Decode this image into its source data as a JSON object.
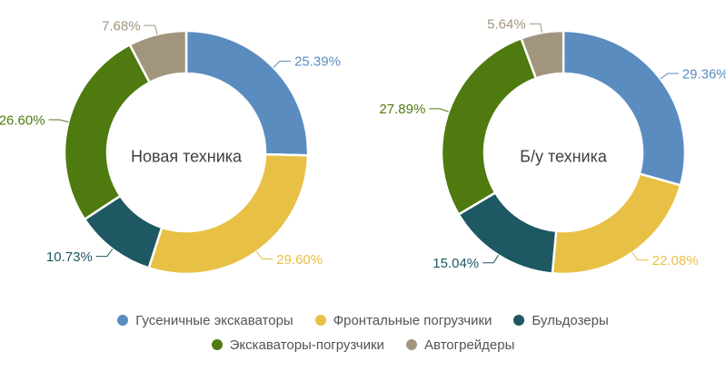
{
  "figure": {
    "type": "dual-donut-comparison",
    "background": "#ffffff",
    "title_color": "#3f3f3f",
    "legend_text_color": "#545454"
  },
  "chart_data": [
    {
      "type": "pie",
      "variant": "donut",
      "title": "Новая техника",
      "categories": [
        "Гусеничные экскаваторы",
        "Фронтальные погрузчики",
        "Бульдозеры",
        "Экскаваторы-погрузчики",
        "Автогрейдеры"
      ],
      "category_keys": [
        "crawler-excavators",
        "front-loaders",
        "bulldozers",
        "backhoe-loaders",
        "motor-graders"
      ],
      "values": [
        25.39,
        29.6,
        10.73,
        26.6,
        7.68
      ],
      "labels": [
        "25.39%",
        "29.60%",
        "10.73%",
        "26.60%",
        "7.68%"
      ],
      "colors": [
        "#5a8cbf",
        "#e8c045",
        "#1d5863",
        "#4e7a0f",
        "#a2957e"
      ],
      "start_angle": "top",
      "direction": "clockwise",
      "legend_position": "bottom"
    },
    {
      "type": "pie",
      "variant": "donut",
      "title": "Б/у техника",
      "categories": [
        "Гусеничные экскаваторы",
        "Фронтальные погрузчики",
        "Бульдозеры",
        "Экскаваторы-погрузчики",
        "Автогрейдеры"
      ],
      "category_keys": [
        "crawler-excavators",
        "front-loaders",
        "bulldozers",
        "backhoe-loaders",
        "motor-graders"
      ],
      "values": [
        29.36,
        22.08,
        15.04,
        27.89,
        5.64
      ],
      "labels": [
        "29.36%",
        "22.08%",
        "15.04%",
        "27.89%",
        "5.64%"
      ],
      "colors": [
        "#5a8cbf",
        "#e8c045",
        "#1d5863",
        "#4e7a0f",
        "#a2957e"
      ],
      "start_angle": "top",
      "direction": "clockwise",
      "legend_position": "bottom"
    }
  ],
  "legend": {
    "rows": [
      [
        "Гусеничные экскаваторы",
        "Фронтальные погрузчики",
        "Бульдозеры"
      ],
      [
        "Экскаваторы-погрузчики",
        "Автогрейдеры"
      ]
    ]
  }
}
